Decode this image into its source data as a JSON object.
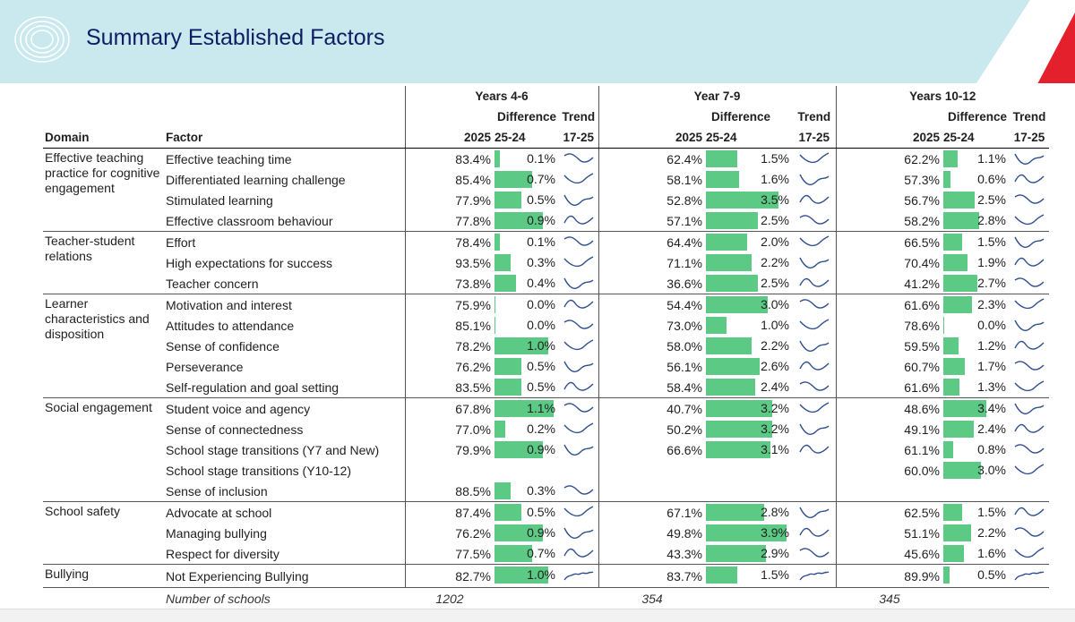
{
  "header": {
    "title": "Summary Established Factors",
    "logo_icon": "concentric-circles-logo-icon"
  },
  "groups": [
    "Years 4-6",
    "Year 7-9",
    "Years 10-12"
  ],
  "columns": {
    "domain": "Domain",
    "factor": "Factor",
    "year": "2025",
    "difference": "Difference",
    "difference_period": "25-24",
    "trend": "Trend",
    "trend_period": "17-25"
  },
  "domains": [
    "Effective teaching practice for cognitive engagement",
    "Teacher-student relations",
    "Learner characteristics and disposition",
    "Social engagement",
    "School safety",
    "Bullying"
  ],
  "rows": [
    {
      "factor": "Effective teaching time",
      "g1": {
        "v": "83.4%",
        "d": "0.1%",
        "dv": 0.1
      },
      "g2": {
        "v": "62.4%",
        "d": "1.5%",
        "dv": 1.5
      },
      "g3": {
        "v": "62.2%",
        "d": "1.1%",
        "dv": 1.1
      }
    },
    {
      "factor": "Differentiated learning challenge",
      "g1": {
        "v": "85.4%",
        "d": "0.7%",
        "dv": 0.7
      },
      "g2": {
        "v": "58.1%",
        "d": "1.6%",
        "dv": 1.6
      },
      "g3": {
        "v": "57.3%",
        "d": "0.6%",
        "dv": 0.6
      }
    },
    {
      "factor": "Stimulated learning",
      "g1": {
        "v": "77.9%",
        "d": "0.5%",
        "dv": 0.5
      },
      "g2": {
        "v": "52.8%",
        "d": "3.5%",
        "dv": 3.5
      },
      "g3": {
        "v": "56.7%",
        "d": "2.5%",
        "dv": 2.5
      }
    },
    {
      "factor": "Effective classroom behaviour",
      "g1": {
        "v": "77.8%",
        "d": "0.9%",
        "dv": 0.9
      },
      "g2": {
        "v": "57.1%",
        "d": "2.5%",
        "dv": 2.5
      },
      "g3": {
        "v": "58.2%",
        "d": "2.8%",
        "dv": 2.8
      }
    },
    {
      "factor": "Effort",
      "g1": {
        "v": "78.4%",
        "d": "0.1%",
        "dv": 0.1
      },
      "g2": {
        "v": "64.4%",
        "d": "2.0%",
        "dv": 2.0
      },
      "g3": {
        "v": "66.5%",
        "d": "1.5%",
        "dv": 1.5
      }
    },
    {
      "factor": "High expectations for success",
      "g1": {
        "v": "93.5%",
        "d": "0.3%",
        "dv": 0.3
      },
      "g2": {
        "v": "71.1%",
        "d": "2.2%",
        "dv": 2.2
      },
      "g3": {
        "v": "70.4%",
        "d": "1.9%",
        "dv": 1.9
      }
    },
    {
      "factor": "Teacher concern",
      "g1": {
        "v": "73.8%",
        "d": "0.4%",
        "dv": 0.4
      },
      "g2": {
        "v": "36.6%",
        "d": "2.5%",
        "dv": 2.5
      },
      "g3": {
        "v": "41.2%",
        "d": "2.7%",
        "dv": 2.7
      }
    },
    {
      "factor": "Motivation and interest",
      "g1": {
        "v": "75.9%",
        "d": "0.0%",
        "dv": 0.0
      },
      "g2": {
        "v": "54.4%",
        "d": "3.0%",
        "dv": 3.0
      },
      "g3": {
        "v": "61.6%",
        "d": "2.3%",
        "dv": 2.3
      }
    },
    {
      "factor": "Attitudes to attendance",
      "g1": {
        "v": "85.1%",
        "d": "0.0%",
        "dv": 0.0
      },
      "g2": {
        "v": "73.0%",
        "d": "1.0%",
        "dv": 1.0
      },
      "g3": {
        "v": "78.6%",
        "d": "0.0%",
        "dv": 0.0
      }
    },
    {
      "factor": "Sense of confidence",
      "g1": {
        "v": "78.2%",
        "d": "1.0%",
        "dv": 1.0
      },
      "g2": {
        "v": "58.0%",
        "d": "2.2%",
        "dv": 2.2
      },
      "g3": {
        "v": "59.5%",
        "d": "1.2%",
        "dv": 1.2
      }
    },
    {
      "factor": "Perseverance",
      "g1": {
        "v": "76.2%",
        "d": "0.5%",
        "dv": 0.5
      },
      "g2": {
        "v": "56.1%",
        "d": "2.6%",
        "dv": 2.6
      },
      "g3": {
        "v": "60.7%",
        "d": "1.7%",
        "dv": 1.7
      }
    },
    {
      "factor": "Self-regulation and goal setting",
      "g1": {
        "v": "83.5%",
        "d": "0.5%",
        "dv": 0.5
      },
      "g2": {
        "v": "58.4%",
        "d": "2.4%",
        "dv": 2.4
      },
      "g3": {
        "v": "61.6%",
        "d": "1.3%",
        "dv": 1.3
      }
    },
    {
      "factor": "Student voice and agency",
      "g1": {
        "v": "67.8%",
        "d": "1.1%",
        "dv": 1.1
      },
      "g2": {
        "v": "40.7%",
        "d": "3.2%",
        "dv": 3.2
      },
      "g3": {
        "v": "48.6%",
        "d": "3.4%",
        "dv": 3.4
      }
    },
    {
      "factor": "Sense of connectedness",
      "g1": {
        "v": "77.0%",
        "d": "0.2%",
        "dv": 0.2
      },
      "g2": {
        "v": "50.2%",
        "d": "3.2%",
        "dv": 3.2
      },
      "g3": {
        "v": "49.1%",
        "d": "2.4%",
        "dv": 2.4
      }
    },
    {
      "factor": "School stage transitions (Y7 and New)",
      "g1": {
        "v": "79.9%",
        "d": "0.9%",
        "dv": 0.9
      },
      "g2": {
        "v": "66.6%",
        "d": "3.1%",
        "dv": 3.1
      },
      "g3": {
        "v": "61.1%",
        "d": "0.8%",
        "dv": 0.8
      }
    },
    {
      "factor": "School stage transitions (Y10-12)",
      "g1": null,
      "g2": null,
      "g3": {
        "v": "60.0%",
        "d": "3.0%",
        "dv": 3.0
      }
    },
    {
      "factor": "Sense of inclusion",
      "g1": {
        "v": "88.5%",
        "d": "0.3%",
        "dv": 0.3
      },
      "g2": null,
      "g3": null
    },
    {
      "factor": "Advocate at school",
      "g1": {
        "v": "87.4%",
        "d": "0.5%",
        "dv": 0.5
      },
      "g2": {
        "v": "67.1%",
        "d": "2.8%",
        "dv": 2.8
      },
      "g3": {
        "v": "62.5%",
        "d": "1.5%",
        "dv": 1.5
      }
    },
    {
      "factor": "Managing bullying",
      "g1": {
        "v": "76.2%",
        "d": "0.9%",
        "dv": 0.9
      },
      "g2": {
        "v": "49.8%",
        "d": "3.9%",
        "dv": 3.9
      },
      "g3": {
        "v": "51.1%",
        "d": "2.2%",
        "dv": 2.2
      }
    },
    {
      "factor": "Respect for diversity",
      "g1": {
        "v": "77.5%",
        "d": "0.7%",
        "dv": 0.7
      },
      "g2": {
        "v": "43.3%",
        "d": "2.9%",
        "dv": 2.9
      },
      "g3": {
        "v": "45.6%",
        "d": "1.6%",
        "dv": 1.6
      }
    },
    {
      "factor": "Not Experiencing Bullying",
      "g1": {
        "v": "82.7%",
        "d": "1.0%",
        "dv": 1.0
      },
      "g2": {
        "v": "83.7%",
        "d": "1.5%",
        "dv": 1.5
      },
      "g3": {
        "v": "89.9%",
        "d": "0.5%",
        "dv": 0.5
      }
    }
  ],
  "footer": {
    "label": "Number of schools",
    "g1": "1202",
    "g2": "354",
    "g3": "345"
  },
  "colors": {
    "bar": "#5cc985",
    "trend_line": "#2f4f8f",
    "banner": "#c9e9ee",
    "title": "#0e1d63",
    "accent_red": "#e3202b"
  }
}
